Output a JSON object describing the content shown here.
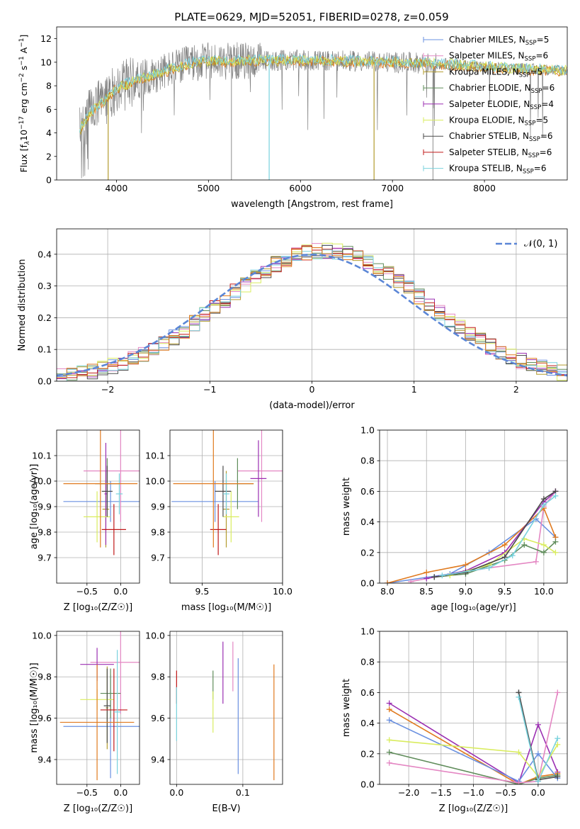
{
  "figure_title": "PLATE=0629, MJD=52051, FIBERID=0278, z=0.059",
  "colors": {
    "blue": "#6a90e0",
    "pink": "#e487c3",
    "olive": "#b29b2e",
    "green": "#5f8c5a",
    "purple": "#9b2fb2",
    "yellow": "#d9ec5e",
    "dark": "#4a4a4a",
    "red": "#c01818",
    "cyan": "#79d2dd",
    "orange": "#e07a1f",
    "data": "#808080",
    "normal": "#5b86d6"
  },
  "chart_data": [
    {
      "id": "spectrum",
      "type": "line",
      "title": "PLATE=0629, MJD=52051, FIBERID=0278, z=0.059",
      "xlabel": "wavelength [Angstrom, rest frame]",
      "ylabel_parts": [
        "Flux [f",
        "λ",
        "10",
        "−17",
        " erg cm",
        "−2",
        " s",
        "−1",
        " A",
        "−1",
        "]"
      ],
      "xlim": [
        3350,
        8900
      ],
      "ylim": [
        0,
        13
      ],
      "xticks": [
        4000,
        5000,
        6000,
        7000,
        8000
      ],
      "yticks": [
        0,
        2,
        4,
        6,
        8,
        10,
        12
      ],
      "legend_location": "upper right",
      "legend": [
        {
          "label": "Chabrier MILES, N",
          "sub": "SSP",
          "suffix": "=5",
          "color": "blue"
        },
        {
          "label": "Salpeter MILES, N",
          "sub": "SSP",
          "suffix": "=6",
          "color": "pink"
        },
        {
          "label": "Kroupa MILES, N",
          "sub": "SSP",
          "suffix": "=5",
          "color": "olive"
        },
        {
          "label": "Chabrier ELODIE, N",
          "sub": "SSP",
          "suffix": "=6",
          "color": "green"
        },
        {
          "label": "Salpeter ELODIE, N",
          "sub": "SSP",
          "suffix": "=4",
          "color": "purple"
        },
        {
          "label": "Kroupa ELODIE, N",
          "sub": "SSP",
          "suffix": "=5",
          "color": "yellow"
        },
        {
          "label": "Chabrier STELIB, N",
          "sub": "SSP",
          "suffix": "=6",
          "color": "dark"
        },
        {
          "label": "Salpeter STELIB, N",
          "sub": "SSP",
          "suffix": "=6",
          "color": "red"
        },
        {
          "label": "Kroupa STELIB, N",
          "sub": "SSP",
          "suffix": "=6",
          "color": "cyan"
        }
      ],
      "continuum": {
        "x": [
          3600,
          3700,
          3850,
          4000,
          4200,
          4500,
          4800,
          5000,
          5300,
          5600,
          6000,
          6500,
          7000,
          7500,
          8000,
          8500,
          8900
        ],
        "y": [
          4.2,
          5.6,
          6.6,
          7.8,
          8.4,
          9.2,
          9.9,
          10.1,
          10.1,
          10.15,
          10.15,
          10.1,
          10.0,
          9.9,
          9.6,
          9.4,
          9.3
        ]
      },
      "model_dips": [
        {
          "x": 3910,
          "ymin": 0,
          "color": "olive"
        },
        {
          "x": 5660,
          "ymin": 0,
          "color": "cyan"
        },
        {
          "x": 6800,
          "ymin": 0,
          "color": "olive"
        }
      ]
    },
    {
      "id": "residuals",
      "type": "histogram",
      "xlabel": "(data-model)/error",
      "ylabel": "Normed distribution",
      "xlim": [
        -2.5,
        2.5
      ],
      "ylim": [
        0,
        0.48
      ],
      "xticks": [
        -2,
        -1,
        0,
        1,
        2
      ],
      "yticks": [
        0.0,
        0.1,
        0.2,
        0.3,
        0.4
      ],
      "bin_width": 0.1,
      "legend": [
        {
          "label": "𝒩(0, 1)",
          "color": "normal",
          "style": "dashed"
        }
      ],
      "legend_location": "upper right"
    },
    {
      "id": "age-vs-Z",
      "type": "scatter",
      "xlabel": "Z [log₁₀(Z/Z☉)]",
      "ylabel": "age  [log₁₀(age/yr)]",
      "xlim": [
        -0.95,
        0.28
      ],
      "ylim": [
        9.6,
        10.2
      ],
      "xticks": [
        -0.5,
        0.0
      ],
      "xticklabels": [
        "−0.5",
        "0.0"
      ],
      "yticks": [
        9.7,
        9.8,
        9.9,
        10.0,
        10.1
      ],
      "points": [
        {
          "color": "blue",
          "x": -0.15,
          "xerr": 0.7,
          "y": 9.92,
          "yerr": 0.08
        },
        {
          "color": "pink",
          "x": 0.0,
          "xerr": 0.55,
          "y": 10.04,
          "yerr": 0.2
        },
        {
          "color": "olive",
          "x": -0.22,
          "xerr": 0.05,
          "y": 9.89,
          "yerr": 0.15
        },
        {
          "color": "green",
          "x": -0.2,
          "xerr": 0.18,
          "y": 9.99,
          "yerr": 0.1
        },
        {
          "color": "purple",
          "x": -0.22,
          "xerr": 0.02,
          "y": 9.95,
          "yerr": 0.2
        },
        {
          "color": "yellow",
          "x": -0.35,
          "xerr": 0.2,
          "y": 9.86,
          "yerr": 0.1
        },
        {
          "color": "dark",
          "x": -0.2,
          "xerr": 0.08,
          "y": 9.96,
          "yerr": 0.1
        },
        {
          "color": "red",
          "x": -0.1,
          "xerr": 0.18,
          "y": 9.81,
          "yerr": 0.1
        },
        {
          "color": "cyan",
          "x": -0.02,
          "xerr": 0.05,
          "y": 9.95,
          "yerr": 0.08
        },
        {
          "color": "orange",
          "x": -0.3,
          "xerr": 0.55,
          "y": 9.99,
          "yerr": 0.25
        }
      ]
    },
    {
      "id": "age-vs-mass",
      "type": "scatter",
      "xlabel": "mass [log₁₀(M/M☉)]",
      "ylabel": "",
      "xlim": [
        9.3,
        10.0
      ],
      "ylim": [
        9.6,
        10.2
      ],
      "xticks": [
        9.5,
        10.0
      ],
      "yticks": [
        9.7,
        9.8,
        9.9,
        10.0,
        10.1
      ],
      "points": [
        {
          "color": "blue",
          "x": 9.58,
          "xerr": 0.27,
          "y": 9.92,
          "yerr": 0.08
        },
        {
          "color": "pink",
          "x": 9.87,
          "xerr": 0.15,
          "y": 10.04,
          "yerr": 0.2
        },
        {
          "color": "olive",
          "x": 9.65,
          "xerr": 0.02,
          "y": 9.89,
          "yerr": 0.15
        },
        {
          "color": "green",
          "x": 9.72,
          "xerr": 0.1,
          "y": 9.99,
          "yerr": 0.1
        },
        {
          "color": "purple",
          "x": 9.85,
          "xerr": 0.05,
          "y": 10.01,
          "yerr": 0.15
        },
        {
          "color": "yellow",
          "x": 9.68,
          "xerr": 0.05,
          "y": 9.86,
          "yerr": 0.1
        },
        {
          "color": "dark",
          "x": 9.63,
          "xerr": 0.05,
          "y": 9.96,
          "yerr": 0.1
        },
        {
          "color": "red",
          "x": 9.6,
          "xerr": 0.05,
          "y": 9.81,
          "yerr": 0.1
        },
        {
          "color": "cyan",
          "x": 9.65,
          "xerr": 0.02,
          "y": 9.95,
          "yerr": 0.08
        },
        {
          "color": "orange",
          "x": 9.57,
          "xerr": 0.25,
          "y": 9.99,
          "yerr": 0.25
        }
      ]
    },
    {
      "id": "massweight-vs-age",
      "type": "line",
      "xlabel": "age  [log₁₀(age/yr)]",
      "ylabel": "mass weight",
      "xlim": [
        7.9,
        10.3
      ],
      "ylim": [
        0.0,
        1.0
      ],
      "xticks": [
        8.0,
        8.5,
        9.0,
        9.5,
        10.0
      ],
      "yticks": [
        0.0,
        0.2,
        0.4,
        0.6,
        0.8,
        1.0
      ],
      "series": [
        {
          "color": "blue",
          "x": [
            8.0,
            8.8,
            9.3,
            9.9,
            10.15
          ],
          "y": [
            0.0,
            0.06,
            0.2,
            0.42,
            0.3
          ]
        },
        {
          "color": "pink",
          "x": [
            8.3,
            8.6,
            9.3,
            9.9,
            10.0,
            10.15
          ],
          "y": [
            0.01,
            0.04,
            0.1,
            0.14,
            0.5,
            0.6
          ]
        },
        {
          "color": "orange",
          "x": [
            8.0,
            8.5,
            9.0,
            9.5,
            10.0,
            10.15
          ],
          "y": [
            0.0,
            0.07,
            0.12,
            0.25,
            0.49,
            0.3
          ]
        },
        {
          "color": "green",
          "x": [
            8.6,
            9.0,
            9.5,
            9.75,
            10.0,
            10.15
          ],
          "y": [
            0.04,
            0.06,
            0.15,
            0.25,
            0.2,
            0.27
          ]
        },
        {
          "color": "purple",
          "x": [
            8.5,
            9.0,
            9.5,
            10.0,
            10.15
          ],
          "y": [
            0.03,
            0.08,
            0.2,
            0.53,
            0.6
          ]
        },
        {
          "color": "yellow",
          "x": [
            8.8,
            9.3,
            9.75,
            10.0,
            10.15
          ],
          "y": [
            0.05,
            0.12,
            0.29,
            0.25,
            0.2
          ]
        },
        {
          "color": "dark",
          "x": [
            8.6,
            9.0,
            9.5,
            10.0,
            10.15
          ],
          "y": [
            0.04,
            0.07,
            0.17,
            0.55,
            0.6
          ]
        },
        {
          "color": "cyan",
          "x": [
            8.7,
            9.3,
            9.6,
            10.0,
            10.15
          ],
          "y": [
            0.05,
            0.1,
            0.18,
            0.51,
            0.57
          ]
        }
      ]
    },
    {
      "id": "mass-vs-Z",
      "type": "scatter",
      "xlabel": "Z [log₁₀(Z/Z☉)]",
      "ylabel": "mass [log₁₀(M/M☉)]",
      "xlim": [
        -0.95,
        0.28
      ],
      "ylim": [
        9.28,
        10.02
      ],
      "xticks": [
        -0.5,
        0.0
      ],
      "xticklabels": [
        "−0.5",
        "0.0"
      ],
      "yticks": [
        9.4,
        9.6,
        9.8,
        10.0
      ],
      "points": [
        {
          "color": "blue",
          "x": -0.15,
          "xerr": 0.7,
          "y": 9.56,
          "yerr": 0.25
        },
        {
          "color": "pink",
          "x": 0.0,
          "xerr": 0.45,
          "y": 9.87,
          "yerr": 0.25
        },
        {
          "color": "olive",
          "x": -0.2,
          "xerr": 0.02,
          "y": 9.65,
          "yerr": 0.2
        },
        {
          "color": "green",
          "x": -0.15,
          "xerr": 0.15,
          "y": 9.72,
          "yerr": 0.12
        },
        {
          "color": "purple",
          "x": -0.35,
          "xerr": 0.25,
          "y": 9.86,
          "yerr": 0.08
        },
        {
          "color": "yellow",
          "x": -0.35,
          "xerr": 0.25,
          "y": 9.69,
          "yerr": 0.05
        },
        {
          "color": "dark",
          "x": -0.2,
          "xerr": 0.05,
          "y": 9.66,
          "yerr": 0.18
        },
        {
          "color": "red",
          "x": -0.1,
          "xerr": 0.2,
          "y": 9.64,
          "yerr": 0.2
        },
        {
          "color": "cyan",
          "x": -0.05,
          "xerr": 0.05,
          "y": 9.63,
          "yerr": 0.3
        },
        {
          "color": "orange",
          "x": -0.35,
          "xerr": 0.55,
          "y": 9.58,
          "yerr": 0.28
        }
      ]
    },
    {
      "id": "mass-vs-ebv",
      "type": "scatter",
      "xlabel": "E(B-V)",
      "ylabel": "",
      "xlim": [
        -0.01,
        0.16
      ],
      "ylim": [
        9.28,
        10.02
      ],
      "xticks": [
        0.0,
        0.1
      ],
      "yticks": [
        9.4,
        9.6,
        9.8,
        10.0
      ],
      "points": [
        {
          "color": "red",
          "x": 0.0,
          "y": 9.75,
          "yerr": 0.08
        },
        {
          "color": "cyan",
          "x": 0.0,
          "y": 9.62,
          "yerr": 0.13
        },
        {
          "color": "green",
          "x": 0.055,
          "y": 9.76,
          "yerr": 0.07
        },
        {
          "color": "yellow",
          "x": 0.055,
          "y": 9.63,
          "yerr": 0.1
        },
        {
          "color": "purple",
          "x": 0.07,
          "y": 9.82,
          "yerr": 0.15
        },
        {
          "color": "pink",
          "x": 0.085,
          "y": 9.85,
          "yerr": 0.12
        },
        {
          "color": "blue",
          "x": 0.093,
          "y": 9.61,
          "yerr": 0.28
        },
        {
          "color": "orange",
          "x": 0.147,
          "y": 9.58,
          "yerr": 0.28
        }
      ]
    },
    {
      "id": "massweight-vs-Z",
      "type": "line",
      "xlabel": "Z [log₁₀(Z/Z☉)]",
      "ylabel": "mass weight",
      "xlim": [
        -2.45,
        0.45
      ],
      "ylim": [
        0.0,
        1.0
      ],
      "xticks": [
        -2.0,
        -1.5,
        -1.0,
        -0.5,
        0.0
      ],
      "xticklabels": [
        "−2.0",
        "−1.5",
        "−1.0",
        "−0.5",
        "0.0"
      ],
      "yticks": [
        0.0,
        0.2,
        0.4,
        0.6,
        0.8,
        1.0
      ],
      "series": [
        {
          "color": "purple",
          "x": [
            -2.3,
            -0.3,
            0.0,
            0.3
          ],
          "y": [
            0.53,
            0.01,
            0.39,
            0.08
          ]
        },
        {
          "color": "orange",
          "x": [
            -2.3,
            -0.3,
            0.0,
            0.3
          ],
          "y": [
            0.49,
            0.0,
            0.05,
            0.07
          ]
        },
        {
          "color": "blue",
          "x": [
            -2.3,
            -0.3,
            0.0,
            0.3
          ],
          "y": [
            0.42,
            0.02,
            0.2,
            0.04
          ]
        },
        {
          "color": "yellow",
          "x": [
            -2.3,
            -0.3,
            0.0,
            0.3
          ],
          "y": [
            0.29,
            0.21,
            0.05,
            0.26
          ]
        },
        {
          "color": "green",
          "x": [
            -2.3,
            -0.3,
            0.0,
            0.3
          ],
          "y": [
            0.21,
            0.0,
            0.04,
            0.06
          ]
        },
        {
          "color": "pink",
          "x": [
            -2.3,
            -0.3,
            0.0,
            0.3
          ],
          "y": [
            0.14,
            0.01,
            0.02,
            0.6
          ]
        },
        {
          "color": "dark",
          "x": [
            -0.3,
            -0.3,
            0.0,
            0.3
          ],
          "y": [
            0.6,
            0.6,
            0.03,
            0.05
          ]
        },
        {
          "color": "cyan",
          "x": [
            -0.3,
            0.0,
            0.3
          ],
          "y": [
            0.57,
            0.02,
            0.3
          ]
        }
      ]
    }
  ]
}
